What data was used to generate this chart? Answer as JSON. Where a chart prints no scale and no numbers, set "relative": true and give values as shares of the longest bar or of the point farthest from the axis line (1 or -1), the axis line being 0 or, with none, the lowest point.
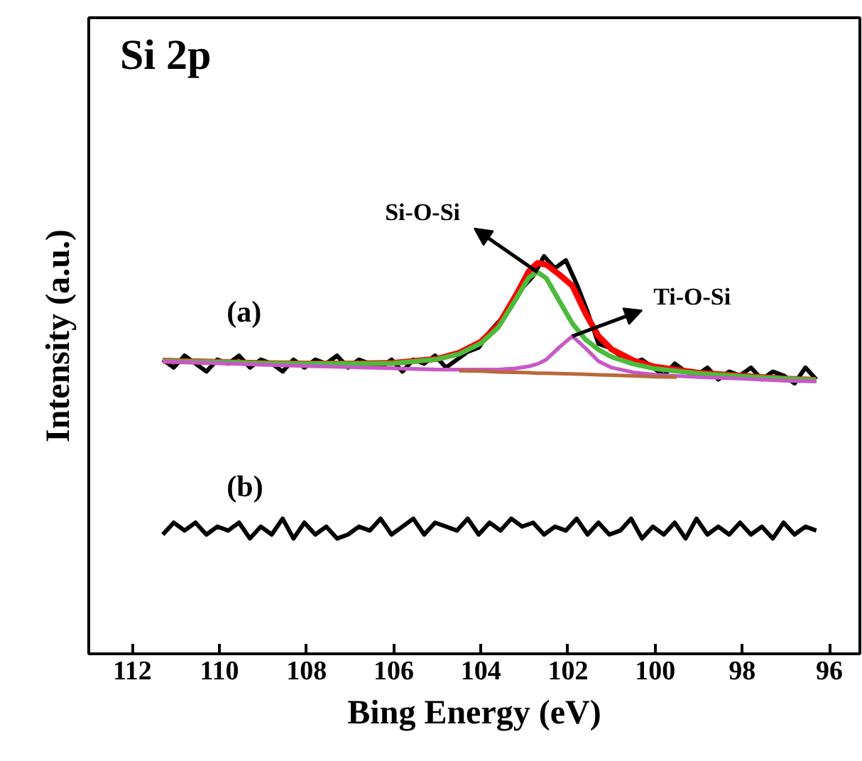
{
  "chart_data": {
    "type": "line",
    "title": "Si 2p",
    "xlabel": "Bing Energy (eV)",
    "ylabel": "Intensity (a.u.)",
    "relative": true,
    "x": [
      111.3,
      110,
      109,
      108,
      107,
      106,
      105,
      104.5,
      104,
      103.6,
      103.2,
      102.9,
      102.7,
      102.5,
      102.2,
      101.9,
      101.6,
      101.3,
      101,
      100.5,
      100,
      99,
      98,
      97,
      96.3
    ],
    "xlim": [
      113,
      95.3
    ],
    "xticks": [
      112,
      110,
      108,
      106,
      104,
      102,
      100,
      98,
      96
    ],
    "tick_labels": "x",
    "grid": false,
    "legend": false,
    "marker": "none",
    "line_style": "solid",
    "series": [
      {
        "name": "(a)",
        "color": "#000000",
        "x": [
          111.3,
          111.05,
          110.8,
          110.55,
          110.3,
          110.05,
          109.8,
          109.55,
          109.3,
          109.05,
          108.8,
          108.55,
          108.3,
          108.05,
          107.8,
          107.55,
          107.3,
          107.05,
          106.8,
          106.55,
          106.3,
          106.05,
          105.8,
          105.55,
          105.3,
          105.05,
          104.8,
          104.55,
          104.3,
          104.05,
          103.8,
          103.55,
          103.3,
          103.05,
          102.8,
          102.55,
          102.3,
          102.05,
          101.8,
          101.55,
          101.3,
          101.05,
          100.8,
          100.55,
          100.3,
          100.05,
          99.8,
          99.55,
          99.3,
          99.05,
          98.8,
          98.55,
          98.3,
          98.05,
          97.8,
          97.55,
          97.3,
          97.05,
          96.8,
          96.55,
          96.3
        ],
        "values": [
          0.74,
          0.72,
          0.75,
          0.73,
          0.71,
          0.74,
          0.73,
          0.75,
          0.72,
          0.74,
          0.73,
          0.71,
          0.74,
          0.72,
          0.74,
          0.73,
          0.75,
          0.72,
          0.74,
          0.73,
          0.72,
          0.74,
          0.71,
          0.74,
          0.73,
          0.75,
          0.72,
          0.74,
          0.76,
          0.77,
          0.81,
          0.84,
          0.88,
          0.92,
          0.95,
          1.0,
          0.97,
          0.99,
          0.93,
          0.86,
          0.78,
          0.77,
          0.75,
          0.73,
          0.74,
          0.72,
          0.7,
          0.73,
          0.71,
          0.7,
          0.72,
          0.69,
          0.71,
          0.7,
          0.72,
          0.69,
          0.71,
          0.7,
          0.68,
          0.72,
          0.69
        ]
      },
      {
        "color": "#ff0000",
        "values": [
          0.737,
          0.734,
          0.731,
          0.73,
          0.73,
          0.732,
          0.742,
          0.757,
          0.785,
          0.827,
          0.901,
          0.962,
          0.983,
          0.979,
          0.954,
          0.926,
          0.857,
          0.799,
          0.766,
          0.738,
          0.722,
          0.707,
          0.699,
          0.692,
          0.689
        ]
      },
      {
        "name": "Si-O-Si",
        "color": "#4cbb3c",
        "values": [
          0.737,
          0.734,
          0.731,
          0.73,
          0.73,
          0.731,
          0.741,
          0.754,
          0.781,
          0.821,
          0.891,
          0.946,
          0.96,
          0.945,
          0.888,
          0.831,
          0.791,
          0.765,
          0.747,
          0.729,
          0.717,
          0.705,
          0.698,
          0.692,
          0.689
        ]
      },
      {
        "name": "Ti-O-Si",
        "color": "#c858c8",
        "values": [
          0.735,
          0.731,
          0.727,
          0.724,
          0.721,
          0.718,
          0.715,
          0.715,
          0.715,
          0.715,
          0.718,
          0.723,
          0.729,
          0.74,
          0.771,
          0.799,
          0.769,
          0.736,
          0.72,
          0.708,
          0.702,
          0.696,
          0.692,
          0.687,
          0.685
        ]
      },
      {
        "color": "#b8693a",
        "x": [
          104.5,
          104,
          103.6,
          103.2,
          102.9,
          102.7,
          102.5,
          102.2,
          101.9,
          101.6,
          101.3,
          101,
          100.5,
          100,
          99.5
        ],
        "values": [
          0.712,
          0.711,
          0.709,
          0.708,
          0.707,
          0.706,
          0.706,
          0.705,
          0.704,
          0.703,
          0.702,
          0.701,
          0.699,
          0.697,
          0.696
        ]
      },
      {
        "name": "(b)",
        "color": "#000000",
        "x": [
          111.3,
          111.05,
          110.8,
          110.55,
          110.3,
          110.05,
          109.8,
          109.55,
          109.3,
          109.05,
          108.8,
          108.55,
          108.3,
          108.05,
          107.8,
          107.55,
          107.3,
          107.05,
          106.8,
          106.55,
          106.3,
          106.05,
          105.8,
          105.55,
          105.3,
          105.05,
          104.8,
          104.55,
          104.3,
          104.05,
          103.8,
          103.55,
          103.3,
          103.05,
          102.8,
          102.55,
          102.3,
          102.05,
          101.8,
          101.55,
          101.3,
          101.05,
          100.8,
          100.55,
          100.3,
          100.05,
          99.8,
          99.55,
          99.3,
          99.05,
          98.8,
          98.55,
          98.3,
          98.05,
          97.8,
          97.55,
          97.3,
          97.05,
          96.8,
          96.55,
          96.3
        ],
        "values": [
          0.3,
          0.33,
          0.31,
          0.33,
          0.3,
          0.32,
          0.31,
          0.33,
          0.29,
          0.32,
          0.3,
          0.34,
          0.29,
          0.33,
          0.3,
          0.32,
          0.29,
          0.3,
          0.32,
          0.31,
          0.34,
          0.3,
          0.32,
          0.34,
          0.3,
          0.33,
          0.32,
          0.31,
          0.34,
          0.3,
          0.33,
          0.31,
          0.34,
          0.32,
          0.33,
          0.3,
          0.32,
          0.31,
          0.34,
          0.3,
          0.33,
          0.3,
          0.31,
          0.34,
          0.29,
          0.32,
          0.3,
          0.33,
          0.29,
          0.34,
          0.3,
          0.32,
          0.3,
          0.33,
          0.3,
          0.32,
          0.29,
          0.33,
          0.3,
          0.32,
          0.31
        ]
      }
    ]
  }
}
